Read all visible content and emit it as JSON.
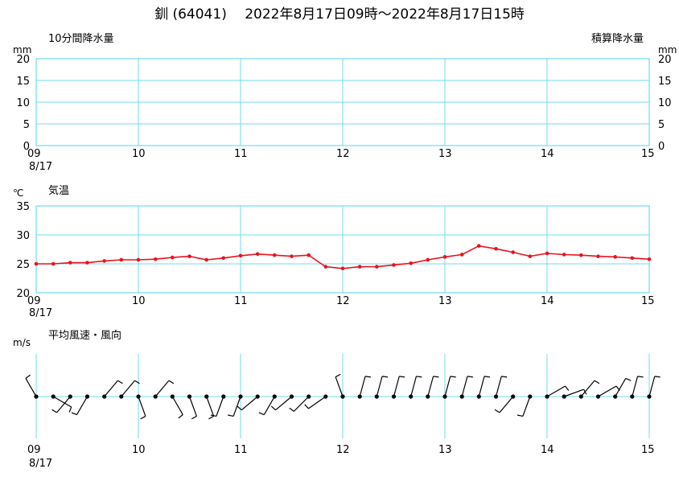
{
  "title": "釧 (64041)　 2022年8月17日09時～2022年8月17日15時",
  "colors": {
    "grid": "#6fdcef",
    "temperature": "#e8131f",
    "wind": "#000000"
  },
  "x_ticks": [
    "09",
    "10",
    "11",
    "12",
    "13",
    "14",
    "15"
  ],
  "date_label": "8/17",
  "chart_data": [
    {
      "type": "bar",
      "name": "10分間降水量",
      "left_label": "10分間降水量",
      "right_label": "積算降水量",
      "left_unit": "mm",
      "right_unit": "mm",
      "ylim": [
        0,
        20
      ],
      "y_ticks": [
        "20",
        "15",
        "10",
        "5",
        "0"
      ],
      "xlim": [
        9,
        15
      ],
      "values": []
    },
    {
      "type": "line",
      "name": "気温",
      "label": "気温",
      "unit": "℃",
      "ylim": [
        20,
        35
      ],
      "y_ticks": [
        "35",
        "30",
        "25",
        "20"
      ],
      "xlim": [
        9,
        15
      ],
      "x": [
        9.0,
        9.167,
        9.333,
        9.5,
        9.667,
        9.833,
        10.0,
        10.167,
        10.333,
        10.5,
        10.667,
        10.833,
        11.0,
        11.167,
        11.333,
        11.5,
        11.667,
        11.833,
        12.0,
        12.167,
        12.333,
        12.5,
        12.667,
        12.833,
        13.0,
        13.167,
        13.333,
        13.5,
        13.667,
        13.833,
        14.0,
        14.167,
        14.333,
        14.5,
        14.667,
        14.833,
        15.0
      ],
      "y": [
        25.0,
        25.0,
        25.2,
        25.2,
        25.5,
        25.7,
        25.7,
        25.8,
        26.1,
        26.3,
        25.7,
        26.0,
        26.4,
        26.7,
        26.5,
        26.3,
        26.5,
        24.5,
        24.2,
        24.5,
        24.5,
        24.8,
        25.1,
        25.7,
        26.2,
        26.6,
        28.1,
        27.6,
        27.0,
        26.3,
        26.8,
        26.6,
        26.5,
        26.3,
        26.2,
        26.0,
        25.8
      ]
    },
    {
      "type": "scatter",
      "name": "平均風速・風向",
      "label": "平均風速・風向",
      "unit": "m/s",
      "xlim": [
        9,
        15
      ],
      "x": [
        9.0,
        9.167,
        9.333,
        9.5,
        9.667,
        9.833,
        10.0,
        10.167,
        10.333,
        10.5,
        10.667,
        10.833,
        11.0,
        11.167,
        11.333,
        11.5,
        11.667,
        11.833,
        12.0,
        12.167,
        12.333,
        12.5,
        12.667,
        12.833,
        13.0,
        13.167,
        13.333,
        13.5,
        13.667,
        13.833,
        14.0,
        14.167,
        14.333,
        14.5,
        14.667,
        14.833,
        15.0
      ],
      "direction_deg": [
        330,
        120,
        220,
        210,
        40,
        40,
        160,
        40,
        150,
        160,
        160,
        200,
        200,
        230,
        210,
        230,
        225,
        235,
        340,
        15,
        15,
        15,
        15,
        15,
        15,
        15,
        15,
        15,
        220,
        200,
        60,
        70,
        40,
        60,
        30,
        15,
        15
      ]
    }
  ]
}
